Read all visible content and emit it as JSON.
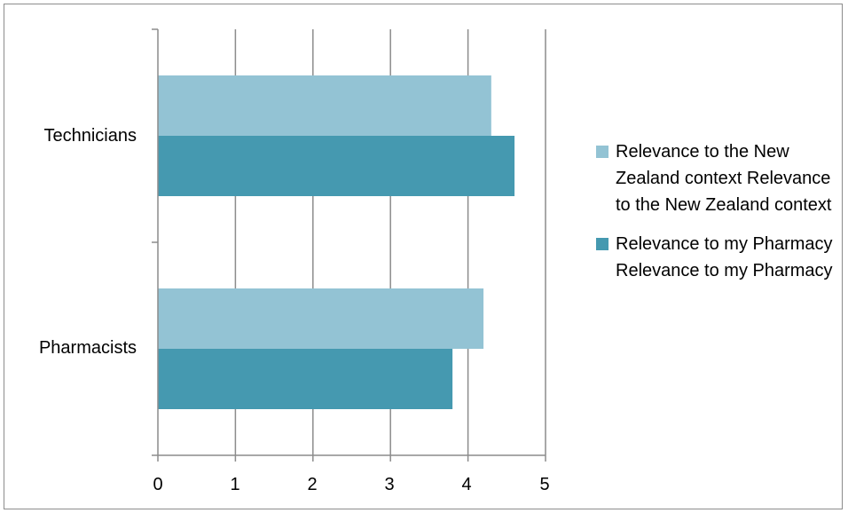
{
  "chart_data": {
    "type": "bar",
    "orientation": "horizontal",
    "categories": [
      "Technicians",
      "Pharmacists"
    ],
    "series": [
      {
        "name": "Relevance to the New Zealand context Relevance to the New Zealand context",
        "color": "#93c3d4",
        "values": [
          4.3,
          4.2
        ]
      },
      {
        "name": "Relevance to my Pharmacy Relevance to my Pharmacy",
        "color": "#4599b0",
        "values": [
          4.6,
          3.8
        ]
      }
    ],
    "xlim": [
      0,
      5
    ],
    "xticks": [
      "0",
      "1",
      "2",
      "3",
      "4",
      "5"
    ],
    "grid": true,
    "legend_position": "right"
  }
}
